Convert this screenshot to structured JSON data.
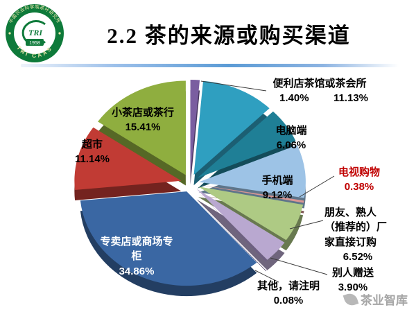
{
  "slide": {
    "title": "2.2 茶的来源或购买渠道",
    "watermark": "茶业智库"
  },
  "logo": {
    "ring_top_text": "中国农业科学院茶叶研究所",
    "ring_bottom_text": "TRI CAAS",
    "center_text": "TRI",
    "year": "1958"
  },
  "chart_data": {
    "type": "pie",
    "style": "3d-exploded",
    "title": "2.2 茶的来源或购买渠道",
    "unit": "%",
    "total": 100,
    "legend": "none",
    "combined_label": "便利店茶馆或茶会所",
    "slices": [
      {
        "name": "便利店",
        "value": 1.4,
        "pct": "1.40%",
        "color": "#7a5ea0"
      },
      {
        "name": "茶馆或茶会所",
        "value": 11.13,
        "pct": "11.13%",
        "color": "#2f9fc0"
      },
      {
        "name": "电脑端",
        "value": 6.06,
        "pct": "6.06%",
        "color": "#1f7f96"
      },
      {
        "name": "手机端",
        "value": 9.12,
        "pct": "9.12%",
        "color": "#9dc3e6"
      },
      {
        "name": "电视购物",
        "value": 0.38,
        "pct": "0.38%",
        "color": "#d99694"
      },
      {
        "name": "朋友、熟人（推荐的）厂家直接订购",
        "value": 6.52,
        "pct": "6.52%",
        "color": "#aeca84"
      },
      {
        "name": "别人赠送",
        "value": 3.9,
        "pct": "3.90%",
        "color": "#b9a8d0"
      },
      {
        "name": "其他，请注明",
        "value": 0.08,
        "pct": "0.08%",
        "color": "#6a4f93"
      },
      {
        "name": "专卖店或商场专柜",
        "value": 34.86,
        "pct": "34.86%",
        "color": "#3a67a3"
      },
      {
        "name": "超市",
        "value": 11.14,
        "pct": "11.14%",
        "color": "#c13b34"
      },
      {
        "name": "小茶店或茶行",
        "value": 15.41,
        "pct": "15.41%",
        "color": "#8fae3f"
      }
    ]
  }
}
